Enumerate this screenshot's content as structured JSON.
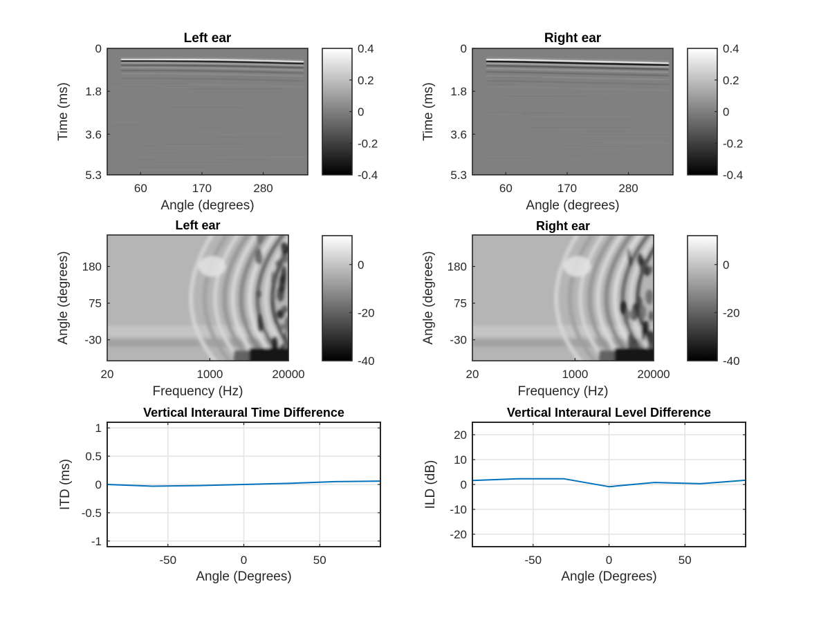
{
  "figure": {
    "background": "#ffffff",
    "line_color": "#0072bd",
    "grid_color": "#e3e3e3",
    "axis_color": "#262626"
  },
  "chart_data": [
    {
      "id": "hrir-left",
      "type": "heatmap",
      "title": "Left ear",
      "xlabel": "Angle (degrees)",
      "ylabel": "Time (ms)",
      "xticks": [
        "60",
        "170",
        "280"
      ],
      "xtick_values": [
        60,
        170,
        280
      ],
      "xlim": [
        0,
        360
      ],
      "yticks": [
        "0",
        "1.8",
        "3.6",
        "5.3"
      ],
      "ytick_values": [
        0,
        1.8,
        3.6,
        5.3
      ],
      "ylim": [
        0,
        5.3
      ],
      "y_reversed": true,
      "colormap": "gray",
      "clim": [
        -0.4,
        0.4
      ],
      "colorbar_ticks": [
        "0.4",
        "0.2",
        "0",
        "-0.2",
        "-0.4"
      ],
      "colorbar_tick_values": [
        0.4,
        0.2,
        0,
        -0.2,
        -0.4
      ],
      "description": "Impulse response: strong bright/dark onset band near 0.35-0.6 ms across all angles, slightly later toward higher angles; near-zero (mid gray) elsewhere"
    },
    {
      "id": "hrir-right",
      "type": "heatmap",
      "title": "Right ear",
      "xlabel": "Angle (degrees)",
      "ylabel": "Time (ms)",
      "xticks": [
        "60",
        "170",
        "280"
      ],
      "xtick_values": [
        60,
        170,
        280
      ],
      "xlim": [
        0,
        360
      ],
      "yticks": [
        "0",
        "1.8",
        "3.6",
        "5.3"
      ],
      "ytick_values": [
        0,
        1.8,
        3.6,
        5.3
      ],
      "ylim": [
        0,
        5.3
      ],
      "y_reversed": true,
      "colormap": "gray",
      "clim": [
        -0.4,
        0.4
      ],
      "colorbar_ticks": [
        "0.4",
        "0.2",
        "0",
        "-0.2",
        "-0.4"
      ],
      "colorbar_tick_values": [
        0.4,
        0.2,
        0,
        -0.2,
        -0.4
      ],
      "description": "Impulse response: onset band near 0.35-0.6 ms with a slight downward slope toward higher angles; near-zero elsewhere"
    },
    {
      "id": "hrtf-left",
      "type": "heatmap",
      "title": "Left ear",
      "xlabel": "Frequency (Hz)",
      "ylabel": "Angle (degrees)",
      "xticks": [
        "20",
        "1000",
        "20000"
      ],
      "xtick_values": [
        20,
        1000,
        20000
      ],
      "xscale": "log",
      "xlim": [
        20,
        20000
      ],
      "yticks": [
        "180",
        "75",
        "-30"
      ],
      "ytick_values": [
        180,
        75,
        -30
      ],
      "ylim": [
        -90,
        270
      ],
      "colormap": "gray",
      "clim": [
        -40,
        12
      ],
      "colorbar_ticks": [
        "0",
        "-20",
        "-40"
      ],
      "colorbar_tick_values": [
        0,
        -20,
        -40
      ],
      "description": "Magnitude response (dB): uniform ~0 dB at low frequency, arc-shaped ripples above ~1 kHz, deep notches (dark) above ~8 kHz especially at the lowest angles"
    },
    {
      "id": "hrtf-right",
      "type": "heatmap",
      "title": "Right ear",
      "xlabel": "Frequency (Hz)",
      "ylabel": "Angle (degrees)",
      "xticks": [
        "20",
        "1000",
        "20000"
      ],
      "xtick_values": [
        20,
        1000,
        20000
      ],
      "xscale": "log",
      "xlim": [
        20,
        20000
      ],
      "yticks": [
        "180",
        "75",
        "-30"
      ],
      "ytick_values": [
        180,
        75,
        -30
      ],
      "ylim": [
        -90,
        270
      ],
      "colormap": "gray",
      "clim": [
        -40,
        12
      ],
      "colorbar_ticks": [
        "0",
        "-20",
        "-40"
      ],
      "colorbar_tick_values": [
        0,
        -20,
        -40
      ],
      "description": "Magnitude response (dB): uniform at low frequency, ripple arcs above ~1 kHz, dark notches at high frequency and lowest angles"
    },
    {
      "id": "itd",
      "type": "line",
      "title": "Vertical Interaural Time Difference",
      "xlabel": "Angle (Degrees)",
      "ylabel": "ITD (ms)",
      "xlim": [
        -90,
        90
      ],
      "ylim": [
        -1.1,
        1.1
      ],
      "xticks": [
        "-50",
        "0",
        "50"
      ],
      "xtick_values": [
        -50,
        0,
        50
      ],
      "yticks": [
        "1",
        "0.5",
        "0",
        "-0.5",
        "-1"
      ],
      "ytick_values": [
        1,
        0.5,
        0,
        -0.5,
        -1
      ],
      "grid": true,
      "series": [
        {
          "name": "ITD",
          "x": [
            -90,
            -60,
            -30,
            0,
            30,
            60,
            90
          ],
          "y": [
            0.0,
            -0.03,
            -0.02,
            0.0,
            0.02,
            0.05,
            0.06
          ]
        }
      ]
    },
    {
      "id": "ild",
      "type": "line",
      "title": "Vertical Interaural Level Difference",
      "xlabel": "Angle (Degrees)",
      "ylabel": "ILD (dB)",
      "xlim": [
        -90,
        90
      ],
      "ylim": [
        -25,
        25
      ],
      "xticks": [
        "-50",
        "0",
        "50"
      ],
      "xtick_values": [
        -50,
        0,
        50
      ],
      "yticks": [
        "20",
        "10",
        "0",
        "-10",
        "-20"
      ],
      "ytick_values": [
        20,
        10,
        0,
        -10,
        -20
      ],
      "grid": true,
      "series": [
        {
          "name": "ILD",
          "x": [
            -90,
            -60,
            -30,
            0,
            30,
            60,
            90
          ],
          "y": [
            1.6,
            2.3,
            2.3,
            -0.9,
            0.8,
            0.3,
            1.7
          ]
        }
      ]
    }
  ]
}
